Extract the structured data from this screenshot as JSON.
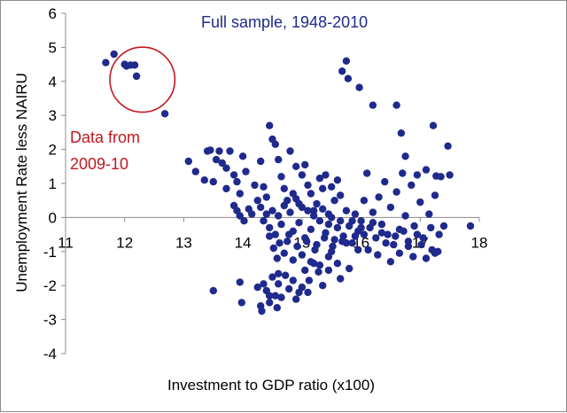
{
  "chart_data": {
    "type": "scatter",
    "title": "Full sample, 1948-2010",
    "xlabel": "Investment to GDP ratio (x100)",
    "ylabel": "Unemployment Rate less NAIRU",
    "xlim": [
      11,
      18
    ],
    "ylim": [
      -4,
      6
    ],
    "xticks": [
      11,
      12,
      13,
      14,
      15,
      16,
      17,
      18
    ],
    "yticks": [
      -4,
      -3,
      -2,
      -1,
      0,
      1,
      2,
      3,
      4,
      5,
      6
    ],
    "grid": false,
    "legend": "none",
    "colors": {
      "points": "#1f2a8c",
      "annotation": "#c0171e",
      "title": "#1f2a8c"
    },
    "annotation": {
      "text_lines": [
        "Data from",
        "2009-10"
      ],
      "circle_center": [
        12.3,
        4.05
      ],
      "circle_radius_x": 0.55
    },
    "points": [
      [
        11.68,
        4.55
      ],
      [
        11.82,
        4.8
      ],
      [
        12.0,
        4.5
      ],
      [
        12.03,
        4.45
      ],
      [
        12.1,
        4.48
      ],
      [
        12.17,
        4.48
      ],
      [
        12.2,
        4.15
      ],
      [
        12.68,
        3.05
      ],
      [
        15.68,
        4.3
      ],
      [
        15.75,
        4.6
      ],
      [
        15.78,
        4.08
      ],
      [
        15.97,
        3.82
      ],
      [
        16.2,
        3.3
      ],
      [
        16.6,
        3.3
      ],
      [
        16.68,
        2.48
      ],
      [
        16.75,
        1.8
      ],
      [
        17.22,
        2.7
      ],
      [
        17.47,
        2.1
      ],
      [
        17.27,
        1.22
      ],
      [
        13.08,
        1.65
      ],
      [
        13.2,
        1.35
      ],
      [
        13.35,
        1.1
      ],
      [
        13.4,
        1.95
      ],
      [
        13.45,
        1.98
      ],
      [
        13.5,
        1.05
      ],
      [
        13.55,
        1.7
      ],
      [
        13.6,
        1.95
      ],
      [
        13.65,
        1.6
      ],
      [
        13.72,
        1.45
      ],
      [
        13.78,
        1.95
      ],
      [
        13.85,
        1.25
      ],
      [
        13.9,
        1.05
      ],
      [
        13.95,
        0.7
      ],
      [
        14.0,
        1.8
      ],
      [
        14.05,
        1.35
      ],
      [
        13.72,
        0.85
      ],
      [
        13.85,
        0.35
      ],
      [
        13.9,
        0.2
      ],
      [
        13.95,
        0.05
      ],
      [
        14.02,
        -0.1
      ],
      [
        14.1,
        0.25
      ],
      [
        14.15,
        0.1
      ],
      [
        14.2,
        0.95
      ],
      [
        14.25,
        0.5
      ],
      [
        14.3,
        1.65
      ],
      [
        14.35,
        0.9
      ],
      [
        14.4,
        0.6
      ],
      [
        14.45,
        2.7
      ],
      [
        14.5,
        2.3
      ],
      [
        14.55,
        2.15
      ],
      [
        14.6,
        1.7
      ],
      [
        14.65,
        1.2
      ],
      [
        14.7,
        0.85
      ],
      [
        14.75,
        0.5
      ],
      [
        14.8,
        1.95
      ],
      [
        14.85,
        0.7
      ],
      [
        14.9,
        1.5
      ],
      [
        14.95,
        0.4
      ],
      [
        15.0,
        1.25
      ],
      [
        15.05,
        1.55
      ],
      [
        15.1,
        0.95
      ],
      [
        15.15,
        0.7
      ],
      [
        15.2,
        0.2
      ],
      [
        15.25,
        0.4
      ],
      [
        15.3,
        1.15
      ],
      [
        15.35,
        0.85
      ],
      [
        15.4,
        1.25
      ],
      [
        15.45,
        0.1
      ],
      [
        15.5,
        0.9
      ],
      [
        15.55,
        0.5
      ],
      [
        15.6,
        1.1
      ],
      [
        15.65,
        0.65
      ],
      [
        14.3,
        0.3
      ],
      [
        14.35,
        -0.1
      ],
      [
        14.4,
        0.1
      ],
      [
        14.45,
        -0.3
      ],
      [
        14.5,
        0.2
      ],
      [
        14.55,
        -0.5
      ],
      [
        14.6,
        0.05
      ],
      [
        14.65,
        -0.2
      ],
      [
        14.7,
        0.35
      ],
      [
        14.75,
        -0.7
      ],
      [
        14.8,
        0.15
      ],
      [
        14.85,
        -0.4
      ],
      [
        14.9,
        0.55
      ],
      [
        14.95,
        -0.15
      ],
      [
        15.0,
        0.3
      ],
      [
        15.05,
        -0.6
      ],
      [
        15.1,
        0.2
      ],
      [
        15.15,
        -0.35
      ],
      [
        15.2,
        0.05
      ],
      [
        15.25,
        -0.8
      ],
      [
        15.3,
        -0.1
      ],
      [
        15.35,
        0.25
      ],
      [
        15.4,
        -0.45
      ],
      [
        15.45,
        -0.2
      ],
      [
        15.5,
        0.0
      ],
      [
        15.55,
        -0.65
      ],
      [
        15.6,
        -0.3
      ],
      [
        15.65,
        -0.1
      ],
      [
        15.7,
        -0.55
      ],
      [
        15.75,
        0.2
      ],
      [
        15.8,
        -0.25
      ],
      [
        15.85,
        -0.75
      ],
      [
        15.9,
        0.1
      ],
      [
        15.95,
        -0.4
      ],
      [
        14.45,
        -0.55
      ],
      [
        14.52,
        -0.9
      ],
      [
        14.58,
        -1.2
      ],
      [
        14.62,
        -0.75
      ],
      [
        14.7,
        -1.05
      ],
      [
        14.78,
        -0.5
      ],
      [
        14.85,
        -1.25
      ],
      [
        14.92,
        -0.85
      ],
      [
        15.0,
        -1.1
      ],
      [
        15.08,
        -0.7
      ],
      [
        15.15,
        -1.3
      ],
      [
        15.22,
        -0.95
      ],
      [
        15.3,
        -1.4
      ],
      [
        15.38,
        -0.6
      ],
      [
        15.45,
        -1.15
      ],
      [
        15.52,
        -0.85
      ],
      [
        15.6,
        -1.35
      ],
      [
        15.68,
        -0.7
      ],
      [
        14.25,
        -2.05
      ],
      [
        14.3,
        -2.6
      ],
      [
        14.32,
        -2.75
      ],
      [
        14.4,
        -2.15
      ],
      [
        14.45,
        -2.5
      ],
      [
        14.5,
        -1.75
      ],
      [
        14.55,
        -2.3
      ],
      [
        14.6,
        -1.95
      ],
      [
        14.65,
        -2.35
      ],
      [
        14.72,
        -1.7
      ],
      [
        14.78,
        -2.1
      ],
      [
        14.85,
        -1.85
      ],
      [
        14.9,
        -2.4
      ],
      [
        14.95,
        -2.2
      ],
      [
        15.0,
        -2.05
      ],
      [
        15.05,
        -1.55
      ],
      [
        15.12,
        -1.85
      ],
      [
        15.2,
        -1.35
      ],
      [
        15.28,
        -1.6
      ],
      [
        15.35,
        -2.0
      ],
      [
        14.35,
        -1.95
      ],
      [
        14.45,
        -2.3
      ],
      [
        14.58,
        -2.65
      ],
      [
        14.6,
        -1.65
      ],
      [
        13.95,
        -1.9
      ],
      [
        13.98,
        -2.5
      ],
      [
        13.5,
        -2.15
      ],
      [
        16.0,
        -0.1
      ],
      [
        16.05,
        0.5
      ],
      [
        16.1,
        1.3
      ],
      [
        16.15,
        -0.3
      ],
      [
        16.2,
        0.15
      ],
      [
        16.25,
        -0.6
      ],
      [
        16.3,
        0.6
      ],
      [
        16.35,
        -0.2
      ],
      [
        16.4,
        1.05
      ],
      [
        16.45,
        -0.5
      ],
      [
        16.5,
        0.3
      ],
      [
        16.55,
        -0.8
      ],
      [
        16.6,
        0.75
      ],
      [
        16.65,
        -0.35
      ],
      [
        16.7,
        1.3
      ],
      [
        16.75,
        0.05
      ],
      [
        16.8,
        -0.7
      ],
      [
        16.85,
        0.95
      ],
      [
        16.9,
        -0.25
      ],
      [
        16.95,
        1.25
      ],
      [
        17.0,
        0.45
      ],
      [
        17.05,
        -0.6
      ],
      [
        17.1,
        1.4
      ],
      [
        17.15,
        0.1
      ],
      [
        17.2,
        -0.95
      ],
      [
        17.25,
        0.65
      ],
      [
        17.3,
        -1.0
      ],
      [
        17.35,
        1.2
      ],
      [
        17.4,
        -0.25
      ],
      [
        17.5,
        1.25
      ],
      [
        17.85,
        -0.25
      ],
      [
        16.05,
        -0.5
      ],
      [
        16.12,
        -0.95
      ],
      [
        16.2,
        -0.15
      ],
      [
        16.28,
        -1.1
      ],
      [
        16.35,
        -0.45
      ],
      [
        16.42,
        -0.75
      ],
      [
        16.5,
        -1.3
      ],
      [
        16.58,
        -0.55
      ],
      [
        16.65,
        -1.05
      ],
      [
        16.72,
        -0.4
      ],
      [
        16.8,
        -0.85
      ],
      [
        16.88,
        -1.15
      ],
      [
        16.95,
        -0.5
      ],
      [
        17.02,
        -0.8
      ],
      [
        17.1,
        -1.2
      ],
      [
        17.18,
        -0.3
      ],
      [
        17.25,
        -1.05
      ],
      [
        17.32,
        -0.5
      ],
      [
        15.85,
        -0.1
      ],
      [
        15.9,
        -0.55
      ],
      [
        15.95,
        -0.95
      ],
      [
        16.0,
        -0.3
      ],
      [
        15.8,
        -1.5
      ],
      [
        15.75,
        -0.75
      ],
      [
        15.65,
        -1.8
      ],
      [
        15.5,
        -1.0
      ],
      [
        15.45,
        -1.55
      ],
      [
        15.1,
        -2.2
      ]
    ]
  }
}
